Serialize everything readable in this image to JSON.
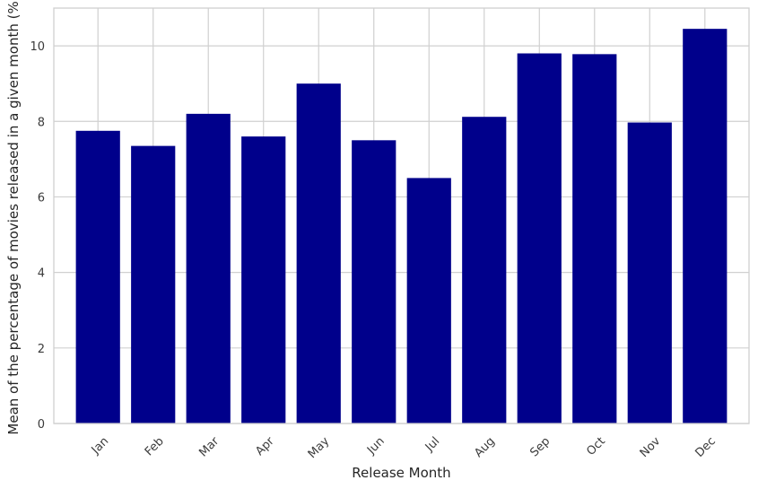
{
  "chart_data": {
    "type": "bar",
    "title": "",
    "xlabel": "Release Month",
    "ylabel": "Mean of the percentage of movies released in a given month (%)",
    "categories": [
      "Jan",
      "Feb",
      "Mar",
      "Apr",
      "May",
      "Jun",
      "Jul",
      "Aug",
      "Sep",
      "Oct",
      "Nov",
      "Dec"
    ],
    "values": [
      7.75,
      7.35,
      8.2,
      7.6,
      9.0,
      7.5,
      6.5,
      8.12,
      9.8,
      9.78,
      7.97,
      10.45
    ],
    "ylim": [
      0,
      11
    ],
    "yticks": [
      0,
      2,
      4,
      6,
      8,
      10
    ],
    "grid": true,
    "x_tick_rotation_deg": 45,
    "bar_color": "#00008b"
  }
}
